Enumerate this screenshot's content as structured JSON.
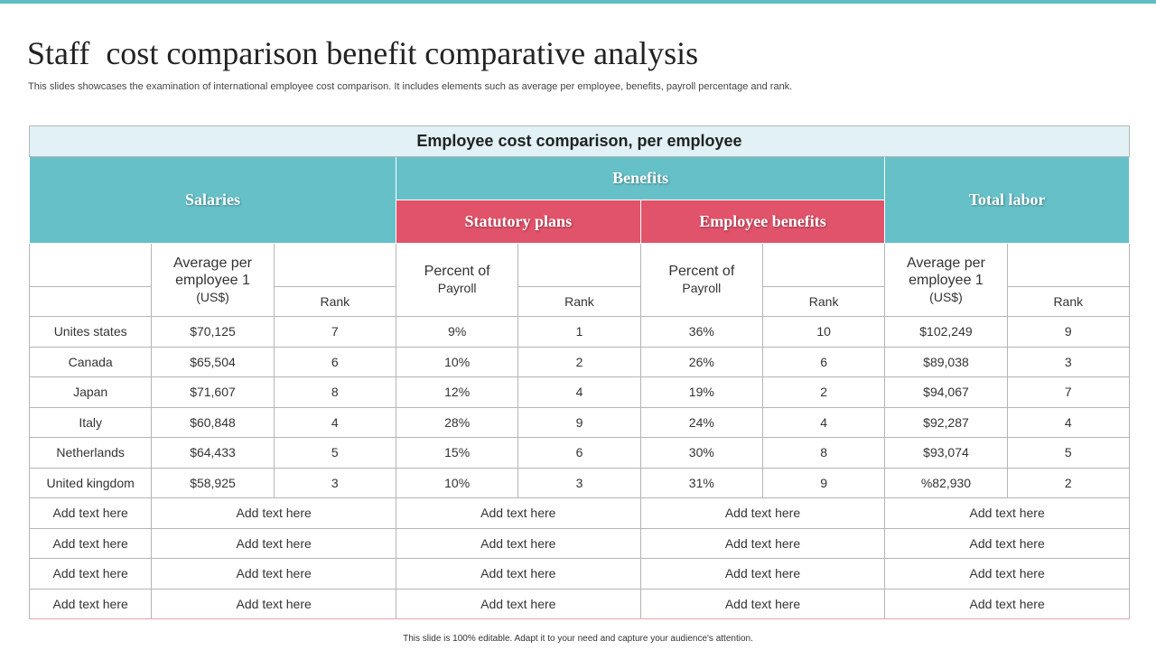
{
  "header": {
    "title": "Staff  cost comparison benefit comparative analysis",
    "subtitle": "This slides showcases the examination of international employee cost comparison. It includes elements such as average per employee, benefits, payroll percentage and rank."
  },
  "table": {
    "caption": "Employee cost comparison, per employee",
    "groups": {
      "salaries": "Salaries",
      "benefits": "Benefits",
      "total_labor": "Total labor",
      "statutory_plans": "Statutory plans",
      "employee_benefits": "Employee benefits"
    },
    "subheaders": {
      "salary_avg": "Average per employee 1",
      "salary_unit": "(US$)",
      "salary_rank": "Rank",
      "statutory_pct": "Percent of",
      "statutory_pct_2": "Payroll",
      "statutory_rank": "Rank",
      "benefits_pct": "Percent of",
      "benefits_pct_2": "Payroll",
      "benefits_rank": "Rank",
      "total_avg": "Average per employee 1",
      "total_unit": "(US$)",
      "total_rank": "Rank"
    },
    "rows": [
      [
        "Unites states",
        "$70,125",
        "7",
        "9%",
        "1",
        "36%",
        "10",
        "$102,249",
        "9"
      ],
      [
        "Canada",
        "$65,504",
        "6",
        "10%",
        "2",
        "26%",
        "6",
        "$89,038",
        "3"
      ],
      [
        "Japan",
        "$71,607",
        "8",
        "12%",
        "4",
        "19%",
        "2",
        "$94,067",
        "7"
      ],
      [
        "Italy",
        "$60,848",
        "4",
        "28%",
        "9",
        "24%",
        "4",
        "$92,287",
        "4"
      ],
      [
        "Netherlands",
        "$64,433",
        "5",
        "15%",
        "6",
        "30%",
        "8",
        "$93,074",
        "5"
      ],
      [
        "United kingdom",
        "$58,925",
        "3",
        "10%",
        "3",
        "31%",
        "9",
        "%82,930",
        "2"
      ]
    ],
    "placeholder_rows": [
      [
        "Add text here",
        "Add text here",
        "Add text here",
        "Add text here",
        "Add text here"
      ],
      [
        "Add text here",
        "Add text here",
        "Add text here",
        "Add text here",
        "Add text here"
      ],
      [
        "Add text here",
        "Add text here",
        "Add text here",
        "Add text here",
        "Add text here"
      ],
      [
        "Add text here",
        "Add text here",
        "Add text here",
        "Add text here",
        "Add text here"
      ]
    ]
  },
  "footer": "This slide is 100% editable. Adapt it to your need and capture your audience's attention."
}
